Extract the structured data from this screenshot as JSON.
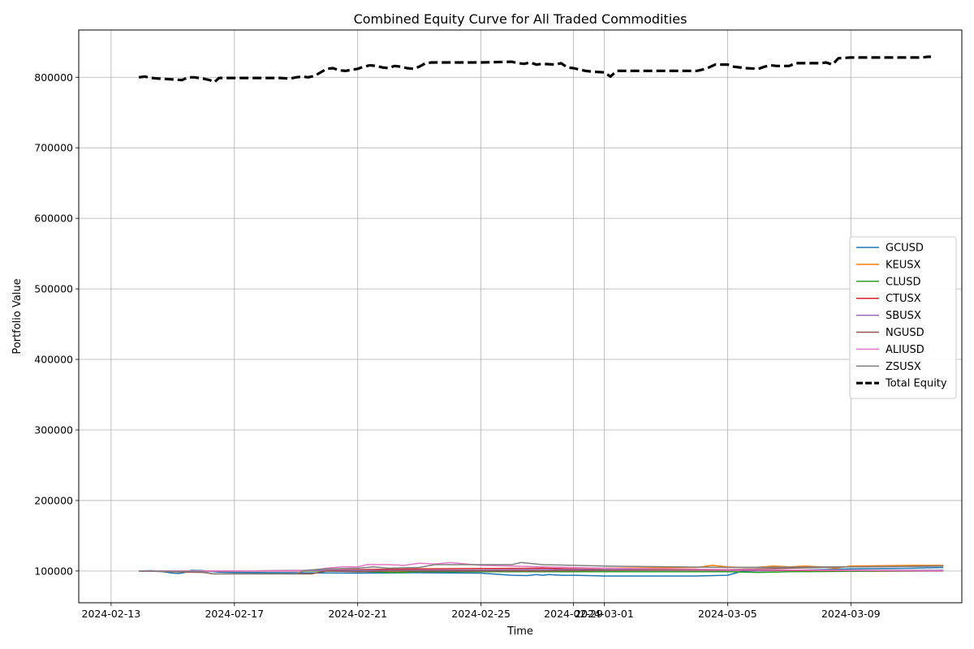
{
  "chart_data": {
    "type": "line",
    "title": "Combined Equity Curve for All Traded Commodities",
    "xlabel": "Time",
    "ylabel": "Portfolio Value",
    "grid": true,
    "legend_position": "center-right",
    "xlim": [
      -1.05,
      27.6
    ],
    "ylim": [
      55000,
      867000
    ],
    "x_tick_positions": [
      0,
      4,
      8,
      12,
      15,
      16,
      20,
      24
    ],
    "x_tick_labels": [
      "2024-02-13",
      "2024-02-17",
      "2024-02-21",
      "2024-02-25",
      "2024-02-29",
      "2024-03-01",
      "2024-03-05",
      "2024-03-09"
    ],
    "y_ticks": [
      100000,
      200000,
      300000,
      400000,
      500000,
      600000,
      700000,
      800000
    ],
    "y_tick_labels": [
      "100000",
      "200000",
      "300000",
      "400000",
      "500000",
      "600000",
      "700000",
      "800000"
    ],
    "series": [
      {
        "name": "GCUSD",
        "color": "#1f77b4",
        "width": 1.5,
        "dash": "",
        "x": [
          0.9,
          1.3,
          1.7,
          2.0,
          2.2,
          2.4,
          2.6,
          3.0,
          3.2,
          3.5,
          4.0,
          6.0,
          8.0,
          10.0,
          12.0,
          13.0,
          13.5,
          13.8,
          14.0,
          14.2,
          14.6,
          15.0,
          15.5,
          16.0,
          16.3,
          17.0,
          19.0,
          20.0,
          20.5,
          22.0,
          24.0,
          26.0,
          27.0
        ],
        "values": [
          100000,
          100500,
          99000,
          97000,
          96500,
          98000,
          101000,
          100500,
          99500,
          98500,
          98000,
          97500,
          97000,
          97500,
          97000,
          94000,
          93500,
          95000,
          94000,
          95000,
          94000,
          94000,
          93500,
          93000,
          93000,
          93000,
          93000,
          94000,
          100000,
          101000,
          103000,
          104000,
          105000
        ]
      },
      {
        "name": "KEUSX",
        "color": "#ff7f0e",
        "width": 1.5,
        "dash": "",
        "x": [
          0.9,
          4.0,
          8.0,
          9.5,
          10.0,
          14.0,
          16.0,
          19.0,
          19.5,
          20.0,
          20.5,
          21.0,
          21.5,
          22.0,
          22.5,
          23.0,
          23.5,
          24.0,
          26.0,
          27.0
        ],
        "values": [
          100000,
          100000,
          100000,
          99500,
          100000,
          100000,
          104000,
          105000,
          108000,
          106000,
          105000,
          105500,
          107000,
          106000,
          107000,
          106000,
          104000,
          107000,
          108000,
          108000
        ]
      },
      {
        "name": "CLUSD",
        "color": "#2ca02c",
        "width": 1.5,
        "dash": "",
        "x": [
          0.9,
          4.0,
          7.0,
          8.0,
          9.0,
          9.5,
          10.0,
          12.0,
          16.0,
          19.0,
          20.0,
          21.0,
          22.0,
          24.0,
          27.0
        ],
        "values": [
          100000,
          100000,
          100000,
          99500,
          98000,
          98000,
          99000,
          99000,
          99000,
          99000,
          99000,
          98000,
          99000,
          99500,
          100000
        ]
      },
      {
        "name": "CTUSX",
        "color": "#d62728",
        "width": 1.5,
        "dash": "",
        "x": [
          0.9,
          4.0,
          7.0,
          8.0,
          10.0,
          12.0,
          14.0,
          16.0,
          20.0,
          24.0,
          27.0
        ],
        "values": [
          100000,
          100000,
          101000,
          102000,
          103000,
          103500,
          104000,
          102000,
          101000,
          100500,
          100000
        ]
      },
      {
        "name": "SBUSX",
        "color": "#9467bd",
        "width": 1.5,
        "dash": "",
        "x": [
          0.9,
          4.0,
          8.0,
          12.0,
          14.0,
          16.0,
          20.0,
          24.0,
          27.0
        ],
        "values": [
          100000,
          100000,
          101000,
          101500,
          102000,
          102000,
          101500,
          101000,
          101000
        ]
      },
      {
        "name": "NGUSD",
        "color": "#8c564b",
        "width": 1.5,
        "dash": "",
        "x": [
          0.9,
          3.0,
          3.3,
          5.0,
          6.5,
          7.0,
          8.0,
          9.0,
          12.0,
          14.0,
          16.0,
          20.0,
          23.0,
          24.0,
          27.0
        ],
        "values": [
          100000,
          98000,
          96000,
          96000,
          96000,
          100000,
          99000,
          100000,
          100000,
          100000,
          101000,
          102000,
          105000,
          106000,
          107000
        ]
      },
      {
        "name": "ALIUSD",
        "color": "#e377c2",
        "width": 1.5,
        "dash": "",
        "x": [
          0.9,
          4.0,
          6.0,
          6.5,
          7.0,
          7.5,
          8.0,
          8.3,
          9.0,
          9.5,
          10.0,
          10.5,
          11.0,
          12.0,
          14.0,
          16.0,
          20.0,
          24.0,
          27.0
        ],
        "values": [
          100000,
          100000,
          100000,
          101000,
          104000,
          106000,
          106000,
          109000,
          109000,
          108000,
          111000,
          110000,
          112000,
          108000,
          106000,
          104000,
          102000,
          101000,
          100000
        ]
      },
      {
        "name": "ZSUSX",
        "color": "#7f7f7f",
        "width": 1.5,
        "dash": "",
        "x": [
          0.9,
          3.0,
          3.3,
          6.0,
          6.3,
          7.0,
          8.0,
          8.5,
          9.0,
          10.0,
          10.5,
          11.0,
          12.0,
          13.0,
          13.3,
          14.0,
          15.0,
          16.0,
          20.0,
          24.0,
          27.0
        ],
        "values": [
          100000,
          99000,
          96000,
          96000,
          101000,
          103000,
          104000,
          106000,
          104000,
          105000,
          109000,
          109000,
          109000,
          109000,
          112000,
          109000,
          108000,
          107000,
          105000,
          106000,
          107000
        ]
      },
      {
        "name": "Total Equity",
        "color": "#000000",
        "width": 3.2,
        "dash": "11,5",
        "x": [
          0.9,
          1.1,
          1.3,
          1.6,
          2.0,
          2.3,
          2.5,
          2.7,
          3.0,
          3.2,
          3.35,
          3.5,
          4.0,
          5.0,
          5.5,
          5.8,
          6.0,
          6.2,
          6.4,
          6.6,
          7.0,
          7.2,
          7.4,
          7.6,
          8.0,
          8.2,
          8.4,
          8.6,
          8.8,
          9.0,
          9.2,
          9.4,
          9.6,
          9.8,
          10.0,
          10.2,
          10.4,
          10.6,
          11.0,
          12.0,
          13.0,
          13.2,
          13.4,
          13.6,
          13.8,
          14.0,
          14.4,
          14.6,
          14.8,
          15.0,
          15.2,
          15.4,
          15.6,
          16.0,
          16.2,
          16.4,
          17.0,
          18.0,
          19.0,
          19.2,
          19.4,
          19.6,
          20.0,
          20.2,
          20.4,
          20.6,
          21.0,
          21.2,
          21.4,
          21.6,
          22.0,
          22.2,
          22.4,
          22.6,
          23.0,
          23.2,
          23.4,
          23.6,
          24.0,
          25.0,
          26.0,
          26.3,
          26.5,
          26.6
        ],
        "values": [
          800000,
          801000,
          799000,
          798000,
          797000,
          796000,
          800000,
          800000,
          798000,
          796000,
          793000,
          799000,
          799000,
          799000,
          799000,
          798000,
          800000,
          801000,
          800000,
          802000,
          812000,
          813000,
          810000,
          809000,
          812000,
          815000,
          817000,
          816000,
          814000,
          813000,
          816000,
          815000,
          813000,
          812000,
          815000,
          820000,
          821000,
          821000,
          821000,
          821000,
          822000,
          820000,
          819000,
          821000,
          818000,
          819000,
          818000,
          820000,
          814000,
          813000,
          811000,
          809000,
          808000,
          807000,
          801000,
          809000,
          809000,
          809000,
          809000,
          811000,
          814000,
          818000,
          818000,
          815000,
          814000,
          813000,
          812000,
          815000,
          817000,
          816000,
          816000,
          820000,
          820000,
          820000,
          820000,
          821000,
          818000,
          827000,
          828000,
          828000,
          828000,
          828000,
          829000,
          829000
        ]
      }
    ]
  }
}
